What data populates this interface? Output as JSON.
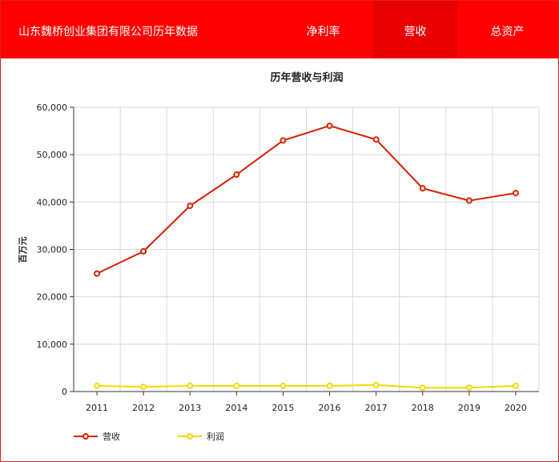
{
  "header": {
    "title": "山东魏桥创业集团有限公司历年数据",
    "tabs": [
      {
        "label": "净利率",
        "active": false
      },
      {
        "label": "营收",
        "active": true
      },
      {
        "label": "总资产",
        "active": false
      }
    ]
  },
  "colors": {
    "header_bg": "#ff0000",
    "active_tab_bg": "#e80000",
    "revenue": "#d62000",
    "profit": "#f5d800"
  },
  "chart_data": {
    "type": "line",
    "title": "历年营收与利润",
    "ylabel": "百万元",
    "xlabel": "",
    "categories": [
      "2011",
      "2012",
      "2013",
      "2014",
      "2015",
      "2016",
      "2017",
      "2018",
      "2019",
      "2020"
    ],
    "y_ticks": [
      "0",
      "10,000",
      "20,000",
      "30,000",
      "40,000",
      "50,000",
      "60,000"
    ],
    "ylim": [
      0,
      60000
    ],
    "grid": true,
    "legend_position": "bottom-left",
    "series": [
      {
        "name": "营收",
        "color": "#d62000",
        "values": [
          24900,
          29600,
          39200,
          45800,
          53000,
          56100,
          53200,
          42900,
          40300,
          41900
        ]
      },
      {
        "name": "利润",
        "color": "#f5d800",
        "values": [
          1200,
          1000,
          1200,
          1200,
          1200,
          1200,
          1400,
          800,
          800,
          1200
        ]
      }
    ]
  }
}
